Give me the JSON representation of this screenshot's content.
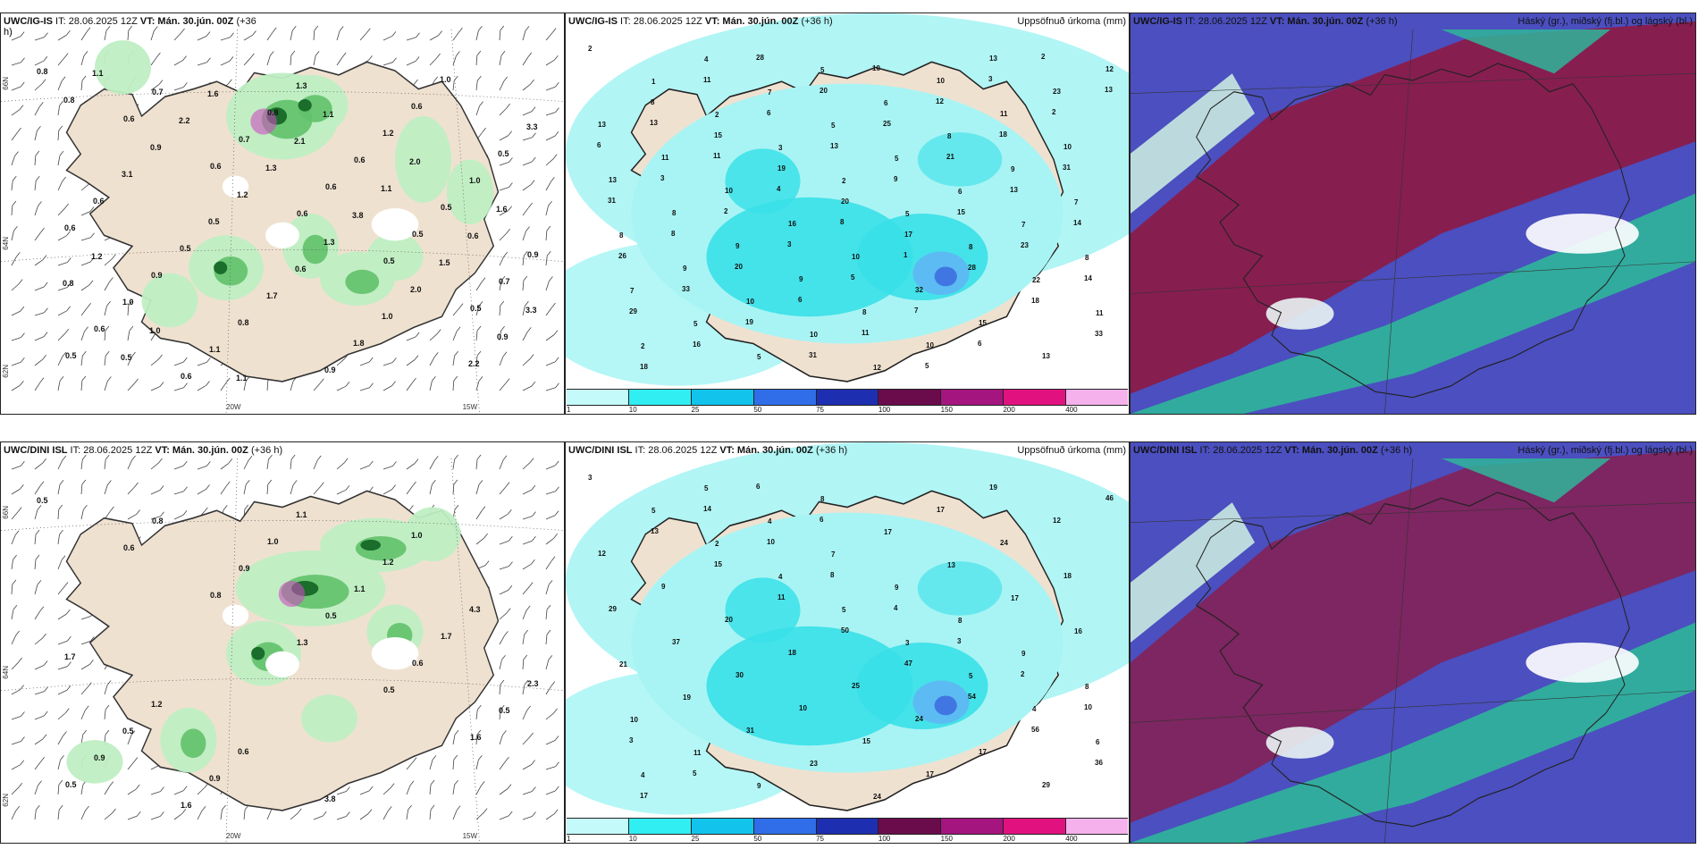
{
  "palette": {
    "sea": "#ffffff",
    "land": "#efe1d0",
    "precip_light": "#bfeec3",
    "precip_mid": "#62c16b",
    "precip_dark": "#1a6d2b",
    "snow_pink": "#cc4fbf",
    "cloud_sea": "#a8f4f4",
    "cloud_mid": "#39e0e8",
    "cloud_high": "#5fb7f4",
    "cloud_peak": "#3d6fe0",
    "layer_high": "#8a1b4a",
    "layer_mid": "#4b4fbf",
    "layer_low": "#2fb59a"
  },
  "rows": [
    {
      "panels": [
        {
          "kind": "precip",
          "header_left_model": "UWC/IG-IS",
          "header_left_it": " IT: 28.06.2025 12Z ",
          "header_left_vt": "VT: Mán. 30.jún. 00Z",
          "header_left_tail": " (+36",
          "header_left_tail2": "h)",
          "header_right": "",
          "lat_labels": [
            "66N",
            "64N",
            "62N"
          ],
          "lon_labels": [
            "20W",
            "15W"
          ],
          "numbers": [
            "0.8",
            "0.6",
            "0.6",
            "0.6",
            "0.5",
            "0.5",
            "0.5",
            "0.7",
            "0.7",
            "0.6",
            "0.5",
            "0.7",
            "0.6",
            "0.6",
            "0.8",
            "0.6",
            "0.5",
            "0.9",
            "1.0",
            "1.1",
            "1.3",
            "1.2",
            "1.0",
            "0.6",
            "0.9",
            "0.8",
            "0.9",
            "0.6",
            "0.5",
            "0.6",
            "0.5",
            "1.7",
            "1.8",
            "1.0",
            "3.3",
            "3.1",
            "0.5",
            "0.6",
            "1.0",
            "2.2",
            "0.8",
            "0.9",
            "1.2",
            "1.3",
            "2.0",
            "0.9",
            "1.1",
            "2.2",
            "1.3",
            "3.8",
            "1.5",
            "3.3",
            "0.5",
            "1.6",
            "2.1",
            "1.1",
            "0.6",
            "0.8",
            "1.0",
            "1.1",
            "1.1",
            "2.0",
            "1.6",
            "1.2"
          ]
        },
        {
          "kind": "accum",
          "header_left_model": "UWC/IG-IS",
          "header_left_it": " IT: 28.06.2025 12Z ",
          "header_left_vt": "VT: Mán. 30.jún. 00Z",
          "header_left_tail": " (+36 h)",
          "header_right": "Uppsöfnuð úrkoma (mm)",
          "numbers": [
            "2",
            "1",
            "2",
            "3",
            "2",
            "5",
            "8",
            "22",
            "11",
            "2",
            "4",
            "7",
            "5",
            "5",
            "6",
            "7",
            "8",
            "7",
            "5",
            "5",
            "5",
            "6",
            "8",
            "9",
            "7",
            "8",
            "9",
            "10",
            "10",
            "12",
            "10",
            "11",
            "10",
            "13",
            "8",
            "9",
            "9",
            "8",
            "10",
            "13",
            "23",
            "13",
            "11",
            "10",
            "16",
            "10",
            "32",
            "15",
            "13",
            "12",
            "8",
            "15",
            "19",
            "20",
            "17",
            "28",
            "18",
            "33",
            "18",
            "11",
            "6",
            "13",
            "9",
            "15",
            "23",
            "14",
            "29",
            "16",
            "28",
            "20",
            "25",
            "21",
            "13",
            "14",
            "26",
            "33",
            "19",
            "31",
            "10",
            "12",
            "18",
            "31",
            "31",
            "8",
            "20",
            "6",
            "11",
            "5",
            "3",
            "2",
            "6",
            "3",
            "2",
            "3",
            "5",
            "7",
            "6",
            "2",
            "13",
            "13",
            "11",
            "4",
            "8",
            "1"
          ],
          "legend_ticks": [
            "1",
            "10",
            "25",
            "50",
            "75",
            "100",
            "150",
            "200",
            "400"
          ]
        },
        {
          "kind": "cloud",
          "header_left_model": "UWC/IG-IS",
          "header_left_it": " IT: 28.06.2025 12Z ",
          "header_left_vt": "VT: Mán. 30.jún. 00Z",
          "header_left_tail": " (+36 h)",
          "header_right": "Háský (gr.), miðský (fj.bl.) og lágský (bl.)"
        }
      ]
    },
    {
      "panels": [
        {
          "kind": "precip",
          "header_left_model": "UWC/DINI ISL",
          "header_left_it": " IT: 28.06.2025 12Z ",
          "header_left_vt": "VT: Mán. 30.jún. 00Z",
          "header_left_tail": " (+36 h)",
          "header_left_tail2": "",
          "header_right": "",
          "lat_labels": [
            "66N",
            "64N",
            "62N"
          ],
          "lon_labels": [
            "20W",
            "15W"
          ],
          "numbers": [
            "0.5",
            "0.6",
            "0.8",
            "1.3",
            "0.5",
            "1.6",
            "0.5",
            "0.8",
            "0.9",
            "0.5",
            "0.6",
            "0.5",
            "0.9",
            "1.6",
            "1.0",
            "1.1",
            "1.7",
            "2.3",
            "0.5",
            "0.9",
            "1.1",
            "1.2",
            "4.3",
            "1.7",
            "1.2",
            "0.6",
            "3.8",
            "1.0"
          ]
        },
        {
          "kind": "accum",
          "header_left_model": "UWC/DINI ISL",
          "header_left_it": " IT: 28.06.2025 12Z ",
          "header_left_vt": "VT: Mán. 30.jún. 00Z",
          "header_left_tail": " (+36 h)",
          "header_right": "Uppsöfnuð úrkoma (mm)",
          "numbers": [
            "3",
            "5",
            "2",
            "4",
            "5",
            "3",
            "5",
            "4",
            "6",
            "4",
            "5",
            "4",
            "7",
            "9",
            "8",
            "9",
            "8",
            "10",
            "11",
            "9",
            "8",
            "17",
            "13",
            "17",
            "16",
            "21",
            "19",
            "31",
            "23",
            "24",
            "17",
            "24",
            "18",
            "29",
            "37",
            "30",
            "10",
            "15",
            "17",
            "19",
            "12",
            "12",
            "9",
            "20",
            "18",
            "25",
            "24",
            "17",
            "29",
            "46",
            "13",
            "15",
            "11",
            "50",
            "47",
            "54",
            "56",
            "36",
            "17",
            "14",
            "10",
            "8",
            "4",
            "3",
            "2",
            "10",
            "3",
            "5",
            "6",
            "6"
          ],
          "legend_ticks": [
            "1",
            "10",
            "25",
            "50",
            "75",
            "100",
            "150",
            "200",
            "400"
          ]
        },
        {
          "kind": "cloud",
          "header_left_model": "UWC/DINI ISL",
          "header_left_it": " IT: 28.06.2025 12Z ",
          "header_left_vt": "VT: Mán. 30.jún. 00Z",
          "header_left_tail": " (+36 h)",
          "header_right": "Háský (gr.), miðský (fj.bl.) og lágský (bl.)"
        }
      ]
    }
  ],
  "accum_legend_colors": [
    "#c4fafa",
    "#31eef2",
    "#12c4ec",
    "#2f6ee8",
    "#1d2fb0",
    "#6a0c4c",
    "#a5157f",
    "#e1127f",
    "#f5b1ec"
  ]
}
